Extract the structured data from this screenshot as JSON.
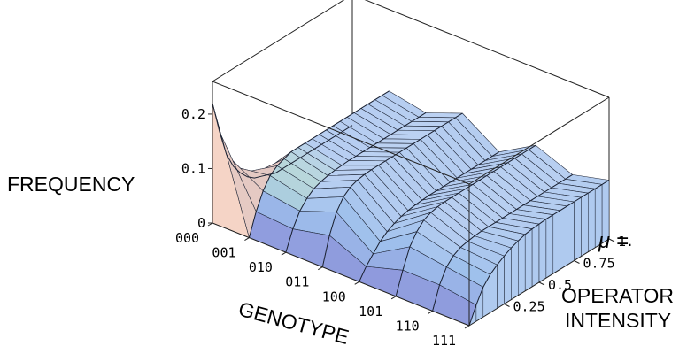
{
  "chart_data": {
    "type": "surface",
    "xlabel": "GENOTYPE",
    "zlabel": "FREQUENCY",
    "ylabel_symbol": "μ =",
    "ylabel_line1": "OPERATOR",
    "ylabel_line2": "INTENSITY",
    "x_categories": [
      "000",
      "001",
      "010",
      "011",
      "100",
      "101",
      "110",
      "111"
    ],
    "y_ticks": [
      "0.25",
      "0.5",
      "0.75",
      "1."
    ],
    "y_tick_values": [
      0.25,
      0.5,
      0.75,
      1.0
    ],
    "z_ticks": [
      "0",
      "0.1",
      "0.2"
    ],
    "z_tick_values": [
      0,
      0.1,
      0.2
    ],
    "mu_range": [
      0,
      1
    ],
    "z_range": [
      0,
      0.26
    ],
    "mu_samples": [
      0,
      0.05,
      0.1,
      0.15,
      0.2,
      0.25,
      0.3,
      0.35,
      0.4,
      0.45,
      0.5,
      0.55,
      0.6,
      0.65,
      0.7,
      0.75,
      0.8,
      0.85,
      0.9,
      0.95,
      1.0
    ],
    "frequency": [
      [
        0.22,
        0.16,
        0.11,
        0.08,
        0.06,
        0.045,
        0.035,
        0.03,
        0.025,
        0.02,
        0.02,
        0.02,
        0.02,
        0.02,
        0.02,
        0.02,
        0.02,
        0.02,
        0.02,
        0.02,
        0.02
      ],
      [
        0.0,
        0.04,
        0.07,
        0.09,
        0.1,
        0.105,
        0.11,
        0.11,
        0.11,
        0.11,
        0.11,
        0.11,
        0.11,
        0.11,
        0.11,
        0.11,
        0.11,
        0.11,
        0.11,
        0.11,
        0.11
      ],
      [
        0.0,
        0.035,
        0.06,
        0.075,
        0.085,
        0.09,
        0.093,
        0.095,
        0.096,
        0.097,
        0.097,
        0.097,
        0.097,
        0.097,
        0.097,
        0.097,
        0.097,
        0.097,
        0.097,
        0.097,
        0.097
      ],
      [
        0.0,
        0.05,
        0.085,
        0.105,
        0.115,
        0.12,
        0.122,
        0.123,
        0.123,
        0.123,
        0.123,
        0.123,
        0.123,
        0.123,
        0.123,
        0.123,
        0.123,
        0.123,
        0.123,
        0.123,
        0.123
      ],
      [
        0.0,
        0.02,
        0.035,
        0.05,
        0.06,
        0.067,
        0.072,
        0.075,
        0.077,
        0.078,
        0.079,
        0.079,
        0.079,
        0.079,
        0.079,
        0.079,
        0.079,
        0.079,
        0.079,
        0.079,
        0.079
      ],
      [
        0.0,
        0.04,
        0.075,
        0.095,
        0.108,
        0.114,
        0.117,
        0.118,
        0.118,
        0.118,
        0.118,
        0.118,
        0.118,
        0.118,
        0.118,
        0.118,
        0.118,
        0.118,
        0.118,
        0.118,
        0.118
      ],
      [
        0.0,
        0.04,
        0.065,
        0.078,
        0.085,
        0.088,
        0.09,
        0.091,
        0.091,
        0.091,
        0.091,
        0.091,
        0.091,
        0.091,
        0.091,
        0.091,
        0.091,
        0.091,
        0.091,
        0.091,
        0.091
      ],
      [
        0.0,
        0.03,
        0.055,
        0.07,
        0.08,
        0.088,
        0.095,
        0.1,
        0.104,
        0.106,
        0.107,
        0.108,
        0.108,
        0.108,
        0.108,
        0.108,
        0.108,
        0.108,
        0.108,
        0.108,
        0.108
      ]
    ],
    "colors": {
      "low": "#8a8fd8",
      "mid": "#9ec0ec",
      "high": "#c8d8f4",
      "warm": "#f2c9b8",
      "green": "#c6f0b0",
      "edge": "#1b2233"
    },
    "grid": false
  }
}
